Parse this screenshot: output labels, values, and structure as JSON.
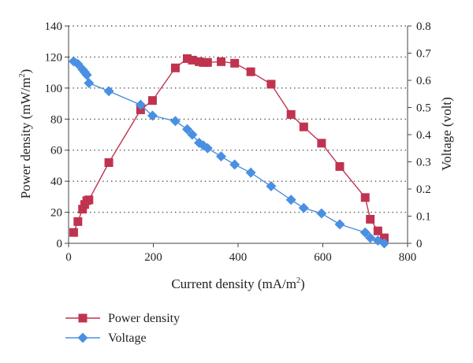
{
  "chart_data": {
    "type": "line",
    "title": "",
    "xlabel": "Current density (mA/m",
    "xlabel_sup": "2",
    "xlabel_end": ")",
    "ylabel_left": "Power density (mW/m",
    "ylabel_left_sup": "2",
    "ylabel_left_end": ")",
    "ylabel_right": "Voltage (volt)",
    "xlim": [
      0,
      800
    ],
    "ylim_left": [
      0,
      140
    ],
    "ylim_right": [
      0,
      0.8
    ],
    "x_ticks": [
      0,
      200,
      400,
      600,
      800
    ],
    "y_left_ticks": [
      0,
      20,
      40,
      60,
      80,
      100,
      120,
      140
    ],
    "y_right_ticks": [
      0,
      0.1,
      0.2,
      0.3,
      0.4,
      0.5,
      0.6,
      0.7,
      0.8
    ],
    "y_right_tick_labels": [
      "0",
      "0.1",
      "0.2",
      "0.3",
      "0.4",
      "0.5",
      "0.6",
      "0.7",
      "0.8"
    ],
    "grid": "horizontal dotted",
    "legend_position": "bottom-left",
    "series": [
      {
        "name": "Power density",
        "axis": "left",
        "color": "#c0334f",
        "marker": "square",
        "x": [
          12,
          22,
          33,
          38,
          43,
          48,
          95,
          170,
          198,
          252,
          280,
          292,
          308,
          318,
          328,
          360,
          392,
          430,
          478,
          525,
          555,
          597,
          640,
          700,
          712,
          730,
          745
        ],
        "y": [
          7,
          14,
          22,
          25,
          27.5,
          28,
          52,
          86,
          92,
          113,
          119,
          118,
          117,
          116.5,
          116.5,
          117,
          116,
          110.5,
          102.5,
          83,
          75,
          64.5,
          49.5,
          29.5,
          15.5,
          8,
          3.5
        ]
      },
      {
        "name": "Voltage",
        "axis": "right",
        "color": "#4a90e2",
        "marker": "diamond",
        "x": [
          12,
          22,
          33,
          38,
          43,
          48,
          95,
          170,
          198,
          252,
          280,
          292,
          308,
          318,
          328,
          360,
          392,
          430,
          478,
          525,
          555,
          597,
          640,
          700,
          712,
          730,
          745
        ],
        "y": [
          0.67,
          0.66,
          0.64,
          0.63,
          0.62,
          0.59,
          0.56,
          0.51,
          0.47,
          0.45,
          0.42,
          0.4,
          0.37,
          0.36,
          0.35,
          0.32,
          0.29,
          0.26,
          0.21,
          0.16,
          0.13,
          0.11,
          0.07,
          0.04,
          0.02,
          0.01,
          0
        ]
      }
    ]
  }
}
